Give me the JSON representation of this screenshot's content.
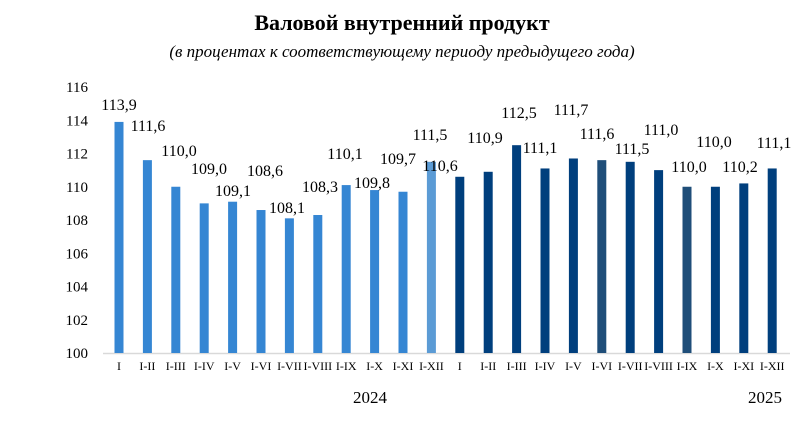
{
  "chart_data": {
    "type": "bar",
    "title": "Валовой внутренний продукт",
    "subtitle": "(в процентах к соответствующему периоду предыдущего года)",
    "xlabel": "",
    "ylabel": "",
    "ylim": [
      100,
      116
    ],
    "yticks": [
      100,
      102,
      104,
      106,
      108,
      110,
      112,
      114,
      116
    ],
    "categories": [
      "I",
      "I-II",
      "I-III",
      "I-IV",
      "I-V",
      "I-VI",
      "I-VII",
      "I-VIII",
      "I-IX",
      "I-X",
      "I-XI",
      "I-XII",
      "I",
      "I-II",
      "I-III",
      "I-IV",
      "I-V",
      "I-VI",
      "I-VII",
      "I-VIII",
      "I-IX",
      "I-X",
      "I-XI",
      "I-XII"
    ],
    "values": [
      113.9,
      111.6,
      110.0,
      109.0,
      109.1,
      108.6,
      108.1,
      108.3,
      110.1,
      109.8,
      109.7,
      111.5,
      110.6,
      110.9,
      112.5,
      111.1,
      111.7,
      111.6,
      111.5,
      111.0,
      110.0,
      110.0,
      110.2,
      111.1
    ],
    "labels": [
      "113,9",
      "111,6",
      "110,0",
      "109,0",
      "109,1",
      "108,6",
      "108,1",
      "108,3",
      "110,1",
      "109,8",
      "109,7",
      "111,5",
      "110,6",
      "110,9",
      "112,5",
      "111,1",
      "111,7",
      "111,6",
      "111,5",
      "111,0",
      "110,0",
      "110,0",
      "110,2",
      "111,1"
    ],
    "groups": [
      "2024",
      "2025"
    ],
    "colors": [
      "#3586d3",
      "#3586d3",
      "#3586d3",
      "#3586d3",
      "#3586d3",
      "#3586d3",
      "#3586d3",
      "#3586d3",
      "#3586d3",
      "#3586d3",
      "#3586d3",
      "#5b9bd5",
      "#003f7d",
      "#003f7d",
      "#003f7d",
      "#003f7d",
      "#003f7d",
      "#1f4e79",
      "#003f7d",
      "#003f7d",
      "#1f4e79",
      "#003f7d",
      "#003f7d",
      "#003f7d"
    ],
    "grid": false,
    "legend": "none"
  }
}
